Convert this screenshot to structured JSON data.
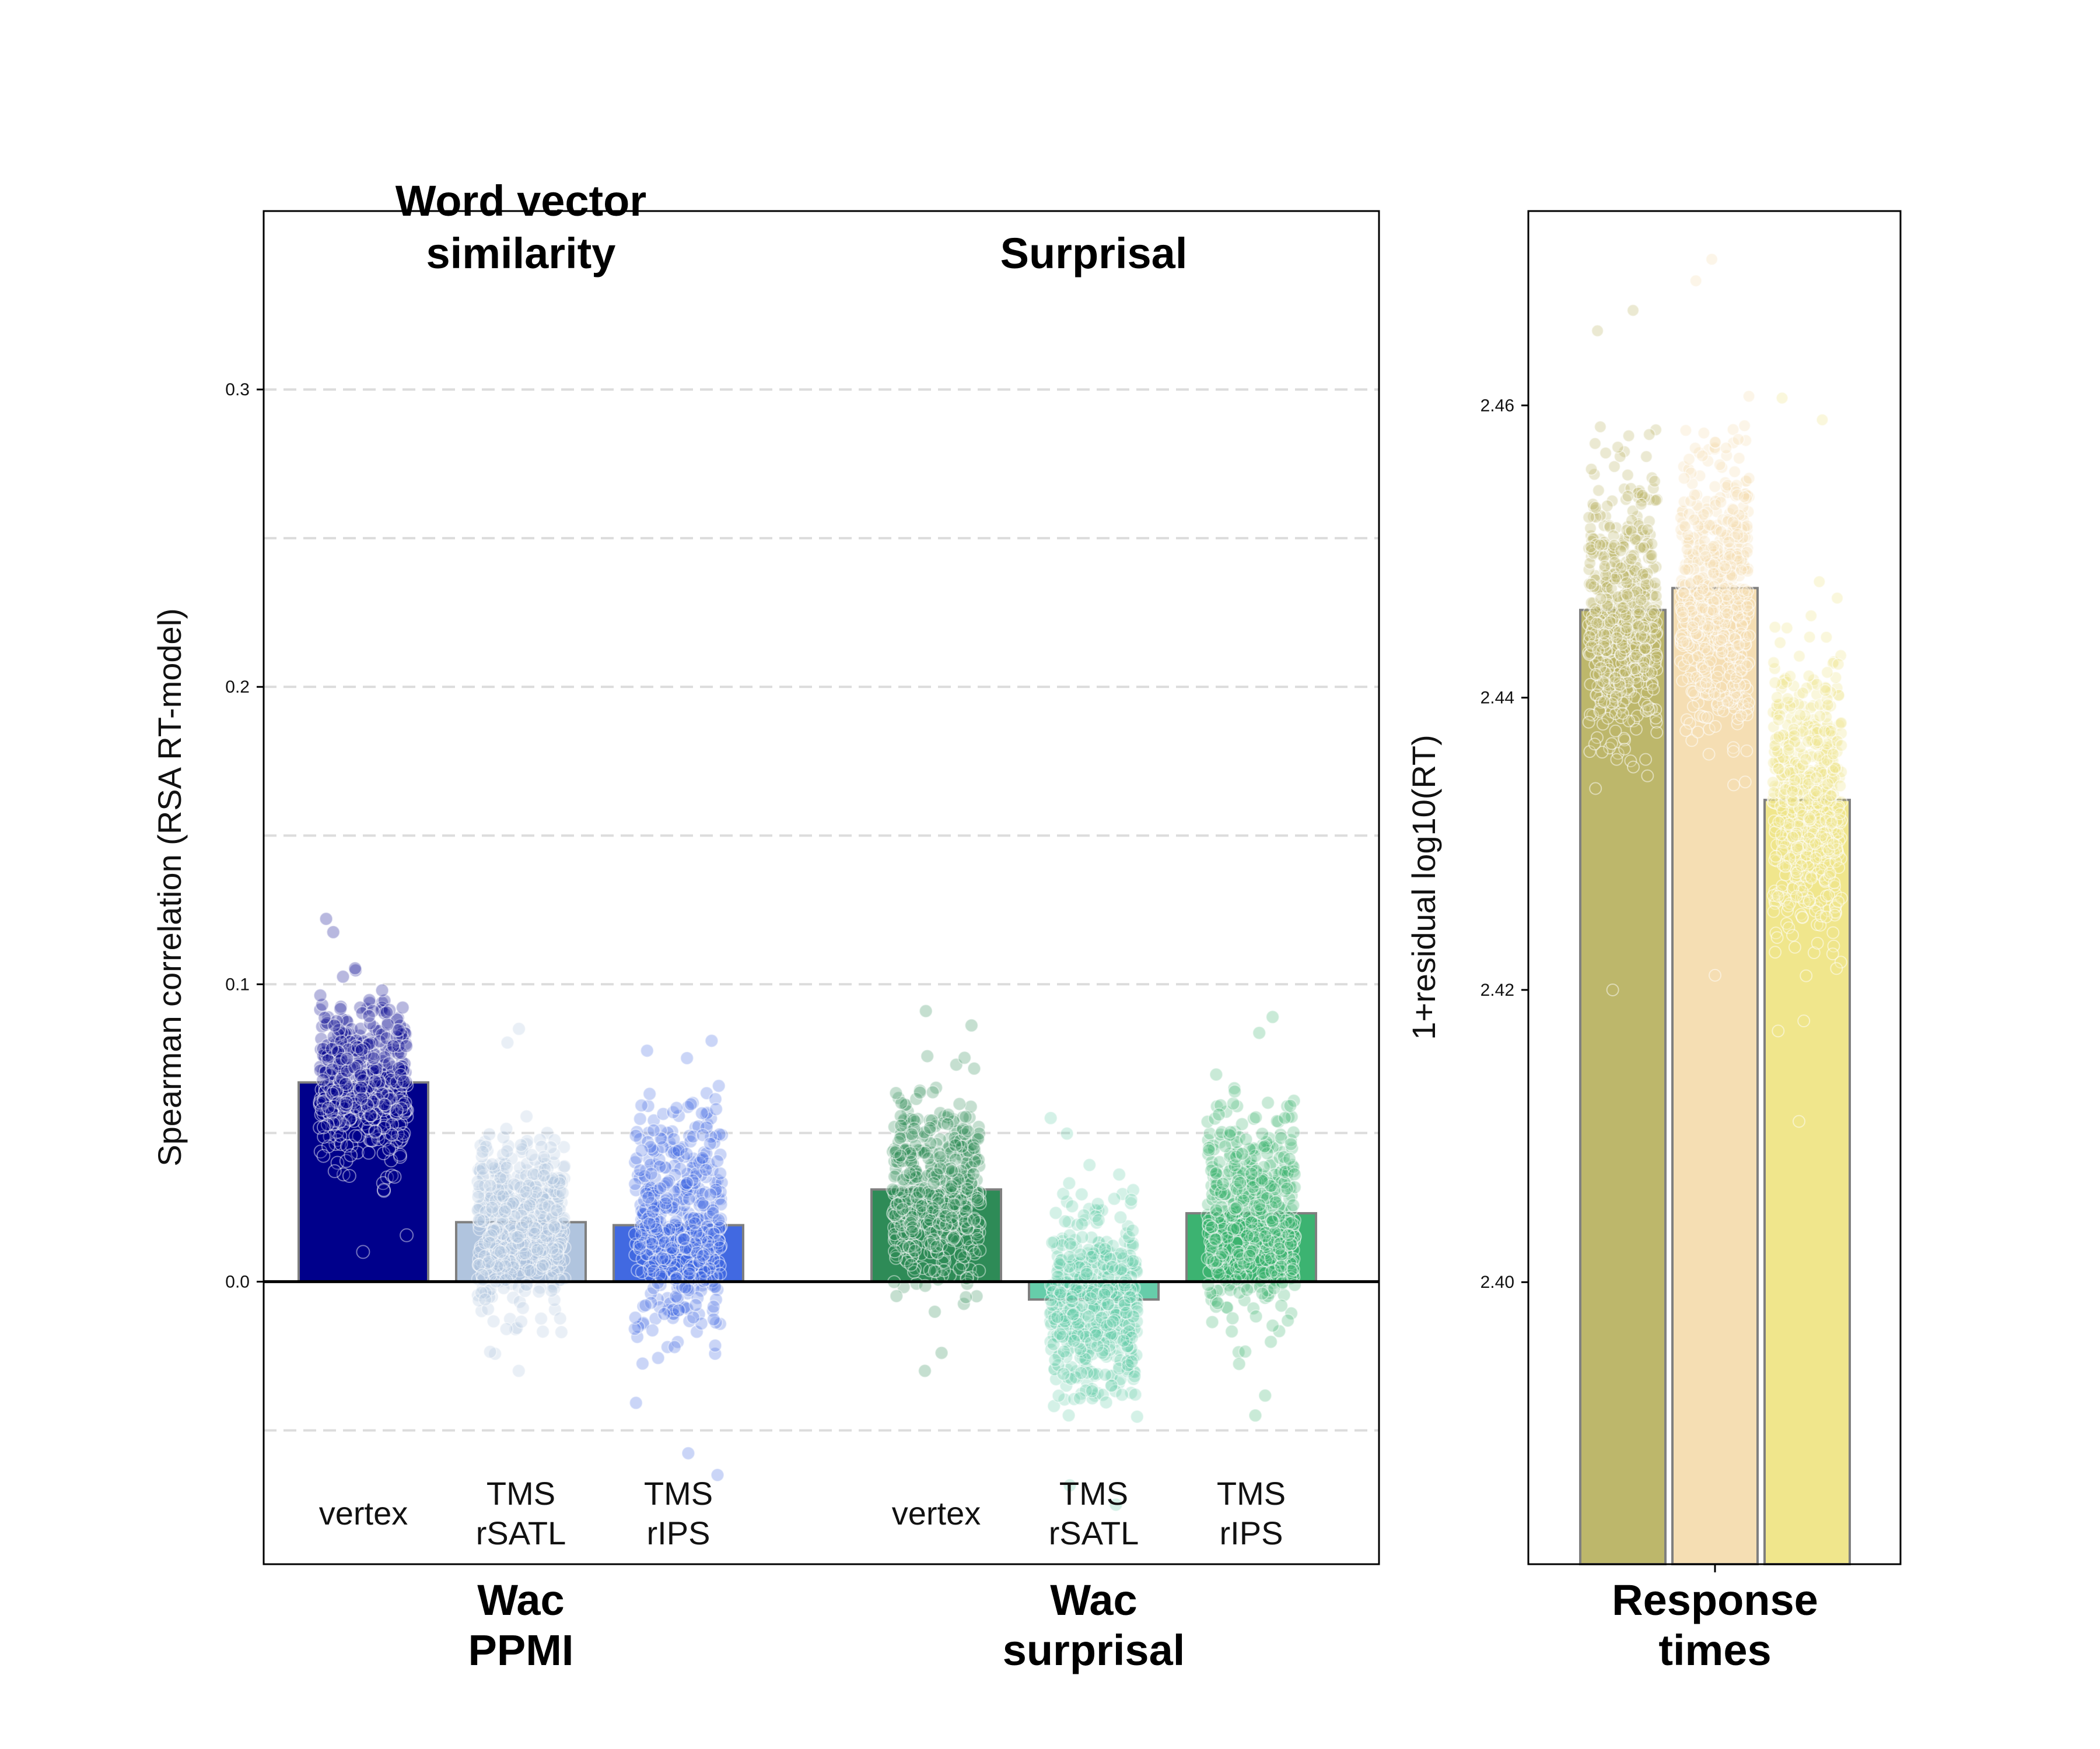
{
  "chart_data": [
    {
      "type": "bar",
      "ylabel": "Spearman correlation (RSA RT-model)",
      "ylim": [
        -0.095,
        0.36
      ],
      "yticks": [
        "0.0",
        "0.1",
        "0.2",
        "0.3"
      ],
      "grid": "dashed horizontal",
      "groups": [
        {
          "top_title": "Word vector similarity",
          "label": "Wac PPMI",
          "bars": [
            {
              "condition": "vertex",
              "value": 0.067,
              "color": "#00008b",
              "points": {
                "min": 0.01,
                "max": 0.122
              }
            },
            {
              "condition": "TMS rSATL",
              "value": 0.02,
              "color": "#b0c4de",
              "points": {
                "min": -0.03,
                "max": 0.085
              }
            },
            {
              "condition": "TMS rIPS",
              "value": 0.019,
              "color": "#4169e1",
              "points": {
                "min": -0.065,
                "max": 0.081
              }
            }
          ]
        },
        {
          "top_title": "Surprisal",
          "label": "Wac surprisal",
          "bars": [
            {
              "condition": "vertex",
              "value": 0.031,
              "color": "#2e8b57",
              "points": {
                "min": -0.03,
                "max": 0.091
              }
            },
            {
              "condition": "TMS rSATL",
              "value": -0.006,
              "color": "#66cdaa",
              "points": {
                "min": -0.075,
                "max": 0.055
              }
            },
            {
              "condition": "TMS rIPS",
              "value": 0.023,
              "color": "#3cb371",
              "points": {
                "min": -0.045,
                "max": 0.089
              }
            }
          ]
        }
      ]
    },
    {
      "type": "bar",
      "ylabel": "1+residual log10(RT)",
      "ylim": [
        2.3807,
        2.4733
      ],
      "yticks": [
        "2.40",
        "2.42",
        "2.44",
        "2.46"
      ],
      "label": "Response times",
      "bars": [
        {
          "value": 2.446,
          "color": "#bdb76b",
          "points": {
            "min": 2.42,
            "max": 2.4665
          }
        },
        {
          "value": 2.4475,
          "color": "#f5deb3",
          "points": {
            "min": 2.421,
            "max": 2.47
          }
        },
        {
          "value": 2.433,
          "color": "#f0e68c",
          "points": {
            "min": 2.411,
            "max": 2.4605
          }
        }
      ]
    }
  ]
}
